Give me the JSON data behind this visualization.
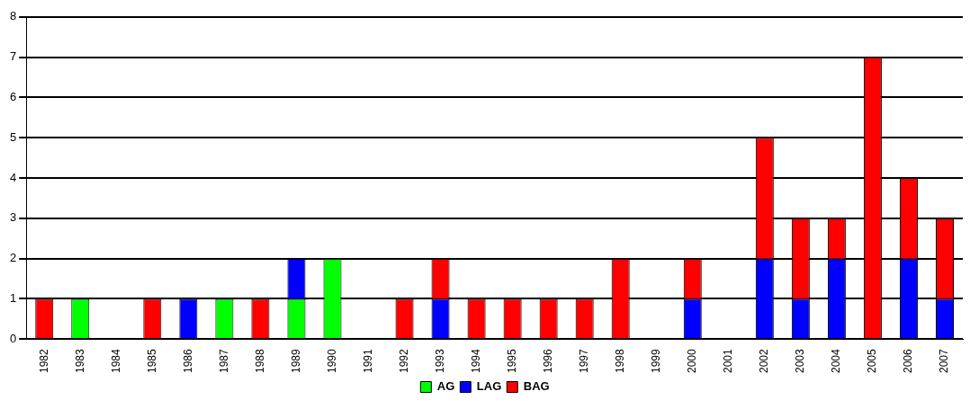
{
  "chart_data": {
    "type": "bar",
    "stacked": true,
    "categories": [
      "1982",
      "1983",
      "1984",
      "1985",
      "1986",
      "1987",
      "1988",
      "1989",
      "1990",
      "1991",
      "1992",
      "1993",
      "1994",
      "1995",
      "1996",
      "1997",
      "1998",
      "1999",
      "2000",
      "2001",
      "2002",
      "2003",
      "2004",
      "2005",
      "2006",
      "2007"
    ],
    "series": [
      {
        "name": "AG",
        "color": "#00ff00",
        "values": [
          0,
          1,
          0,
          0,
          0,
          1,
          0,
          1,
          2,
          0,
          0,
          0,
          0,
          0,
          0,
          0,
          0,
          0,
          0,
          0,
          0,
          0,
          0,
          0,
          0,
          0
        ]
      },
      {
        "name": "LAG",
        "color": "#0000ff",
        "values": [
          0,
          0,
          0,
          0,
          1,
          0,
          0,
          1,
          0,
          0,
          0,
          1,
          0,
          0,
          0,
          0,
          0,
          0,
          1,
          0,
          2,
          1,
          2,
          0,
          2,
          1
        ]
      },
      {
        "name": "BAG",
        "color": "#ff0000",
        "values": [
          1,
          0,
          0,
          1,
          0,
          0,
          1,
          0,
          0,
          0,
          1,
          1,
          1,
          1,
          1,
          1,
          2,
          0,
          1,
          0,
          3,
          2,
          1,
          7,
          2,
          2
        ]
      }
    ],
    "ylim": [
      0,
      8
    ],
    "yticks": [
      0,
      1,
      2,
      3,
      4,
      5,
      6,
      7,
      8
    ],
    "grid": "y",
    "legend": "bottom"
  }
}
